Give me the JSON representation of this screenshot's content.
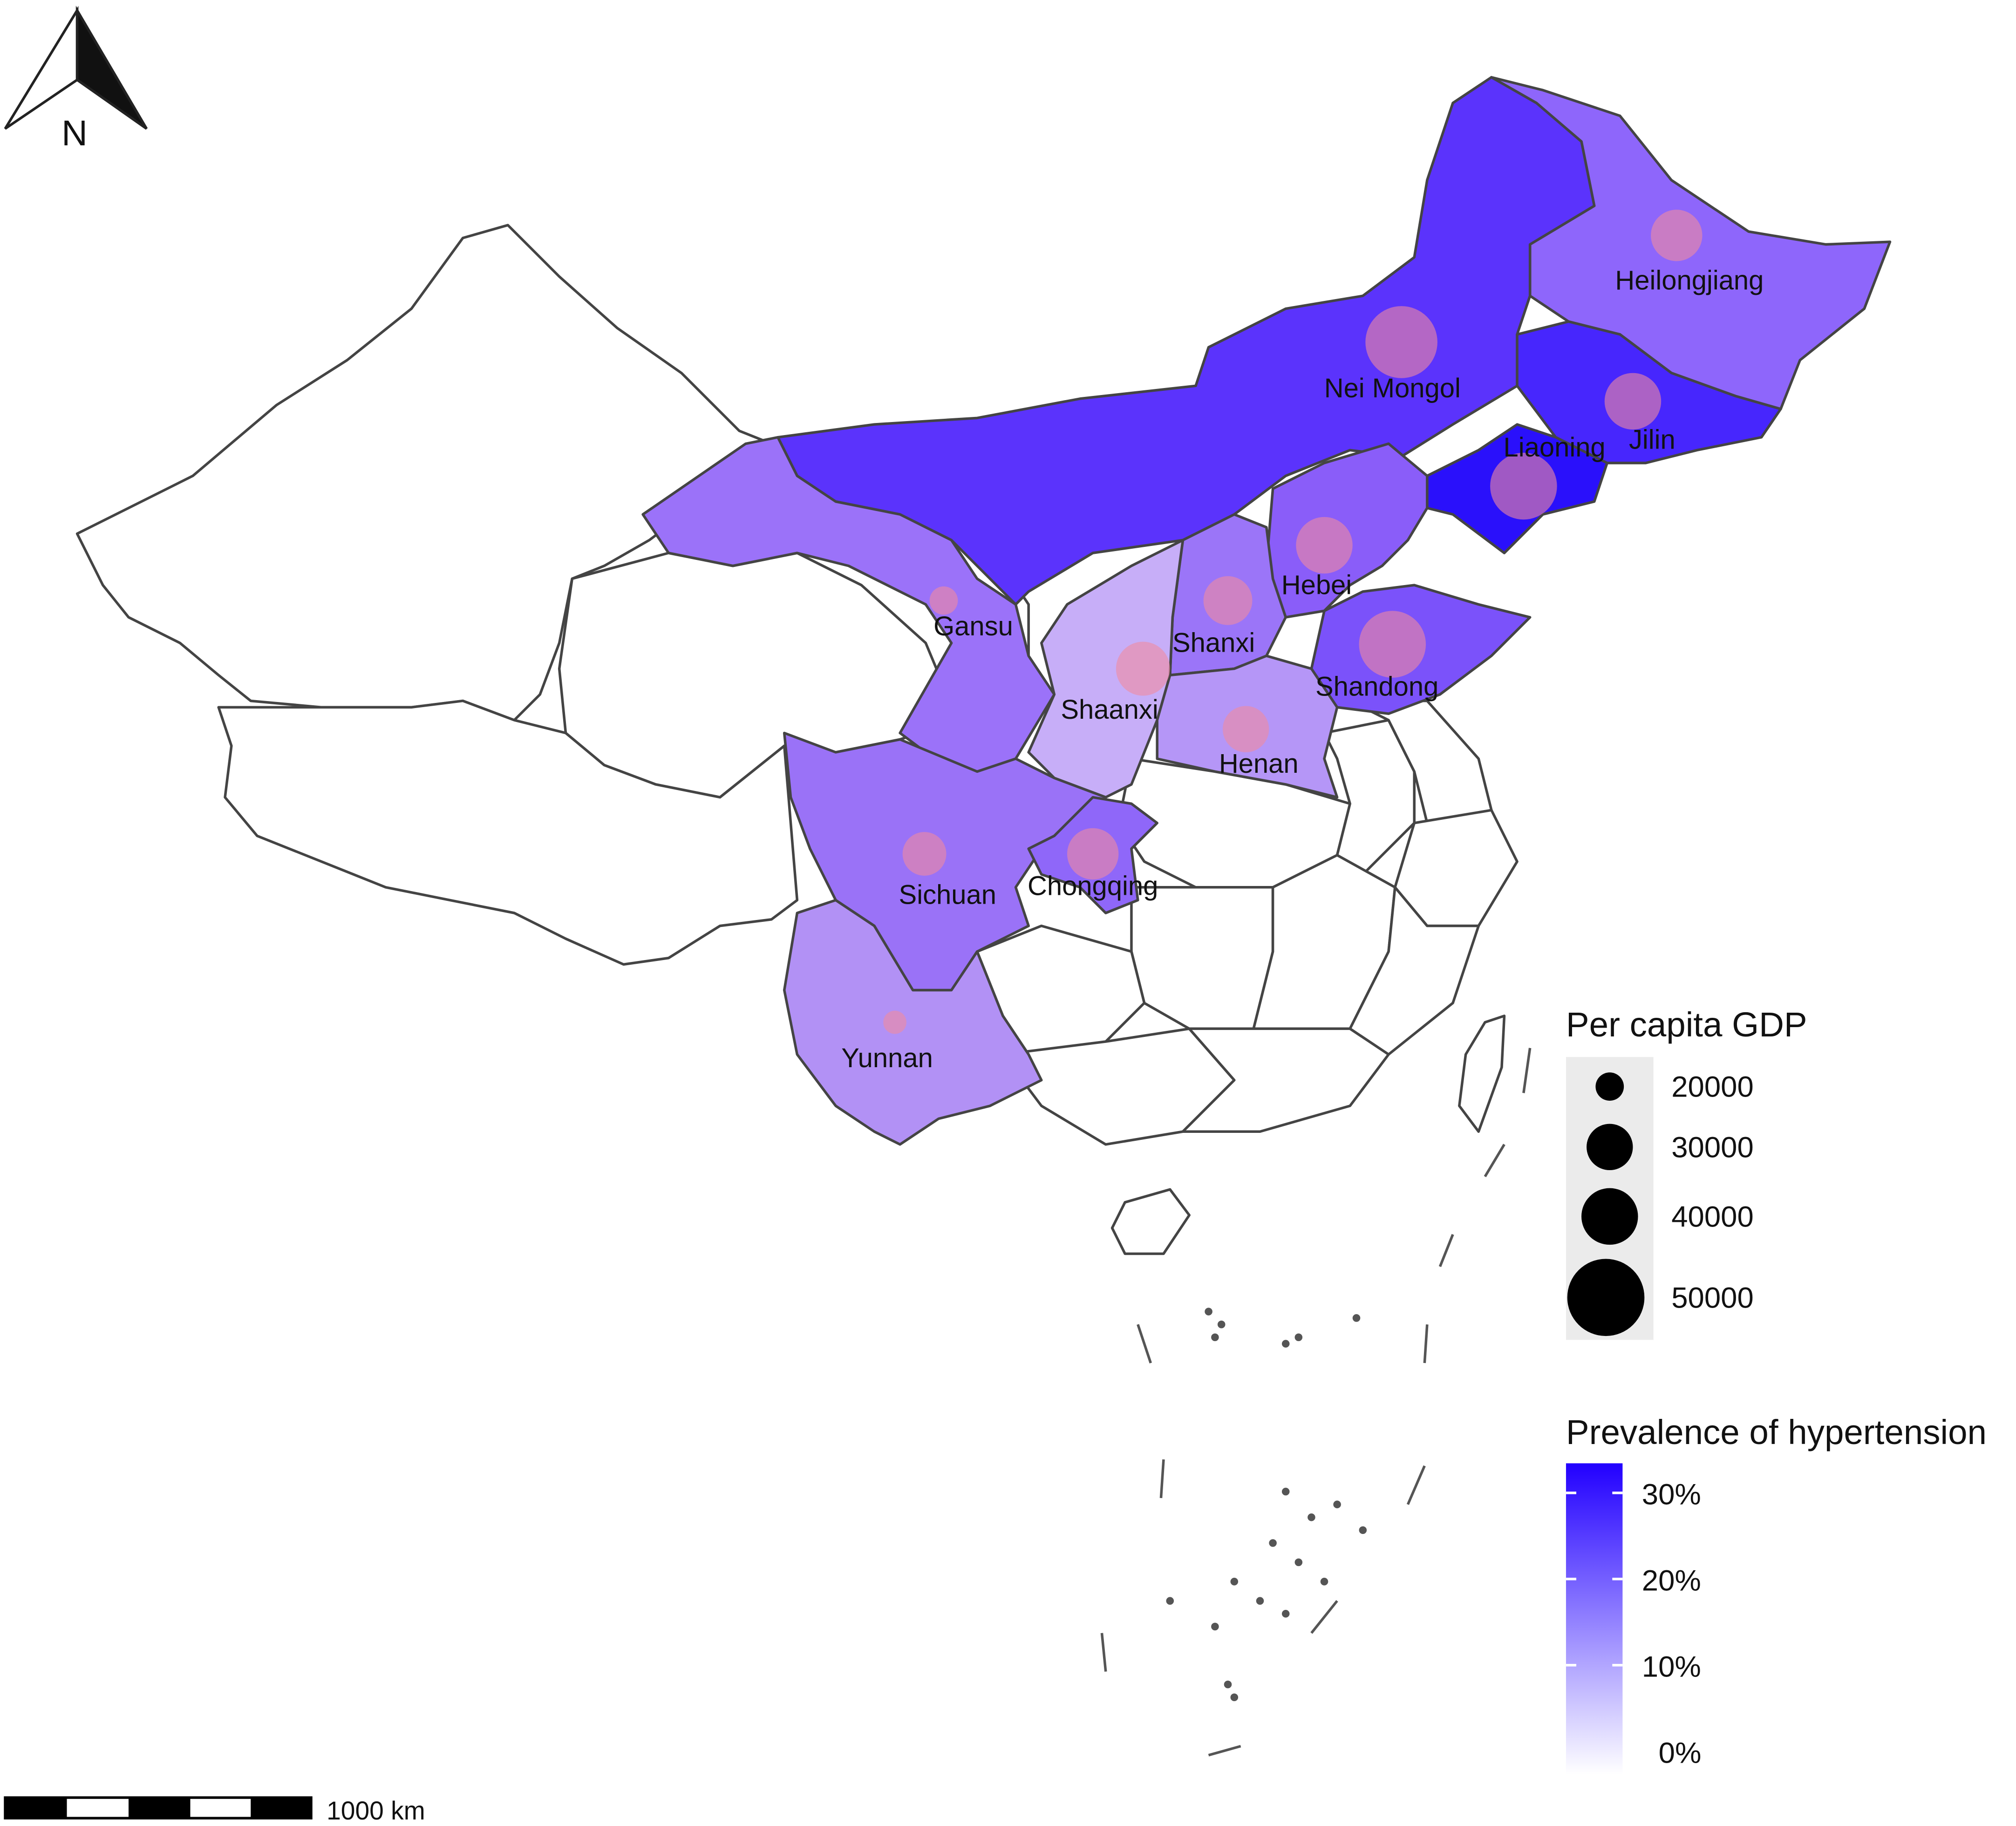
{
  "north_arrow": {
    "label": "N"
  },
  "scale_bar": {
    "label": "1000 km"
  },
  "gdp_legend": {
    "title": "Per capita GDP",
    "entries": [
      "20000",
      "30000",
      "40000",
      "50000"
    ]
  },
  "prevalence_legend": {
    "title": "Prevalence of hypertension",
    "ticks": [
      "30%",
      "20%",
      "10%",
      "0%"
    ],
    "color_low": "#ffffff",
    "color_high": "#2200ff"
  },
  "provinces": [
    {
      "name": "Heilongjiang",
      "color": "#8e66fb"
    },
    {
      "name": "Nei Mongol",
      "color": "#5b33fc"
    },
    {
      "name": "Jilin",
      "color": "#4726fd"
    },
    {
      "name": "Liaoning",
      "color": "#2a10fb"
    },
    {
      "name": "Hebei",
      "color": "#8a5df9"
    },
    {
      "name": "Shanxi",
      "color": "#9b75f8"
    },
    {
      "name": "Shandong",
      "color": "#7b52fa"
    },
    {
      "name": "Gansu",
      "color": "#9b72f9"
    },
    {
      "name": "Shaanxi",
      "color": "#c7aef8"
    },
    {
      "name": "Henan",
      "color": "#b596f7"
    },
    {
      "name": "Sichuan",
      "color": "#9a72f7"
    },
    {
      "name": "Chongqing",
      "color": "#8f67f9"
    },
    {
      "name": "Yunnan",
      "color": "#b291f5"
    }
  ],
  "gdp_bubbles": {
    "color": "#f08aa0",
    "opacity": 0.6
  }
}
